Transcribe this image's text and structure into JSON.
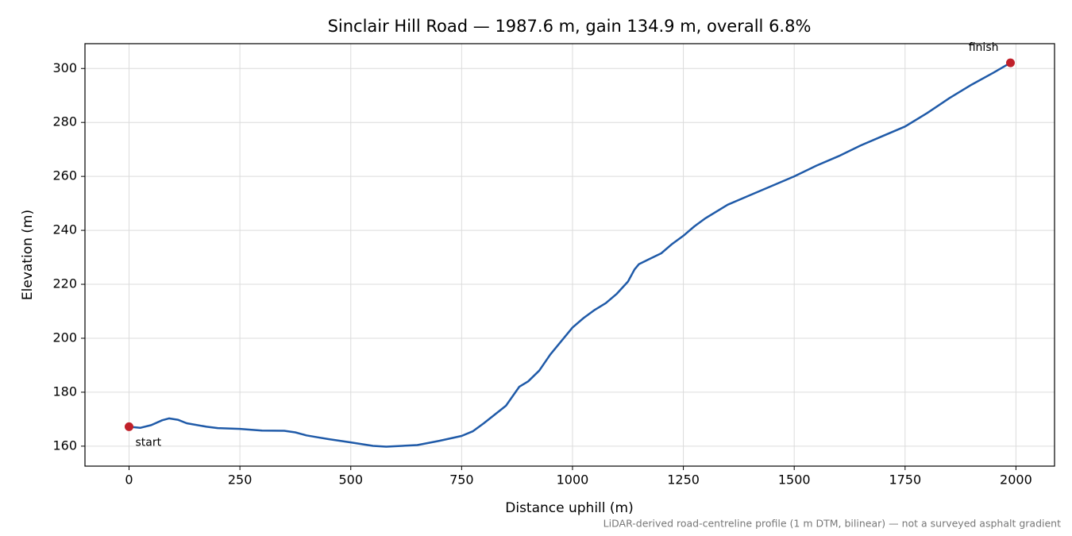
{
  "chart_data": {
    "type": "line",
    "title": "Sinclair Hill Road — 1987.6 m, gain 134.9 m, overall 6.8%",
    "x_label": "Distance uphill (m)",
    "y_label": "Elevation (m)",
    "footnote": "LiDAR-derived road-centreline profile (1 m DTM, bilinear) — not a surveyed asphalt gradient",
    "x": [
      0,
      25,
      50,
      75,
      90,
      110,
      130,
      175,
      200,
      250,
      300,
      350,
      375,
      400,
      425,
      450,
      500,
      550,
      580,
      650,
      700,
      750,
      775,
      800,
      850,
      880,
      900,
      925,
      950,
      975,
      1000,
      1025,
      1050,
      1075,
      1100,
      1125,
      1140,
      1150,
      1175,
      1200,
      1225,
      1250,
      1275,
      1300,
      1350,
      1400,
      1450,
      1500,
      1550,
      1600,
      1650,
      1700,
      1750,
      1800,
      1850,
      1900,
      1950,
      1987.6
    ],
    "series": [
      {
        "color": "#1f5aa8",
        "values": [
          167.2,
          166.8,
          167.8,
          169.6,
          170.3,
          169.8,
          168.5,
          167.2,
          166.7,
          166.4,
          165.8,
          165.7,
          165.1,
          164.0,
          163.3,
          162.6,
          161.4,
          160.1,
          159.8,
          160.4,
          162.0,
          163.8,
          165.5,
          168.5,
          175.0,
          182.0,
          184.0,
          188.0,
          194.0,
          199.0,
          204.0,
          207.5,
          210.5,
          213.0,
          216.5,
          221.0,
          225.5,
          227.5,
          229.5,
          231.5,
          235.0,
          238.0,
          241.5,
          244.5,
          249.5,
          253.0,
          256.5,
          260.0,
          264.0,
          267.5,
          271.5,
          275.0,
          278.5,
          283.5,
          289.0,
          294.0,
          298.5,
          302.1
        ]
      }
    ],
    "markers": {
      "x": [
        0,
        1987.6
      ],
      "values": [
        167.2,
        302.1
      ],
      "labels": [
        "start",
        "finish"
      ],
      "color": "#c0202a"
    },
    "xlim": [
      -99.4,
      2087
    ],
    "ylim": [
      152.6,
      309.2
    ],
    "xticks": [
      0,
      250,
      500,
      750,
      1000,
      1250,
      1500,
      1750,
      2000
    ],
    "yticks": [
      160,
      180,
      200,
      220,
      240,
      260,
      280,
      300
    ],
    "grid": true
  }
}
